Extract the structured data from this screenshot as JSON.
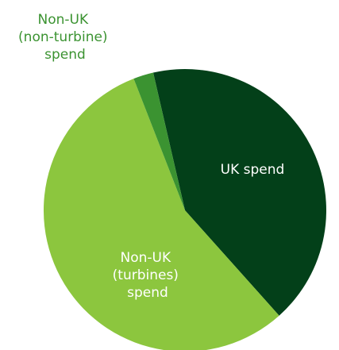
{
  "chart_data": {
    "type": "pie",
    "title": "",
    "slices": [
      {
        "label": "UK spend",
        "value": 42.0,
        "color": "#034019",
        "label_color": "#ffffff"
      },
      {
        "label": "Non-UK (turbines) spend",
        "value": 55.7,
        "color": "#8cc63e",
        "label_color": "#ffffff"
      },
      {
        "label": "Non-UK (non-turbine) spend",
        "value": 2.3,
        "color": "#3b9331",
        "label_color": "#3b9331"
      }
    ],
    "start_angle_deg": -13,
    "direction": "clockwise",
    "legend": "none"
  }
}
